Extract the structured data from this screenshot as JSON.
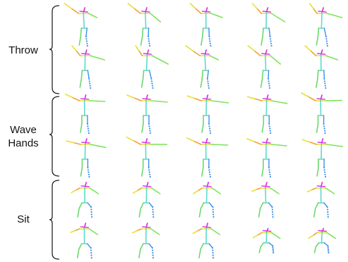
{
  "groups": [
    {
      "label": "Throw",
      "label_lines": [
        "Throw"
      ]
    },
    {
      "label": "Wave Hands",
      "label_lines": [
        "Wave",
        "Hands"
      ]
    },
    {
      "label": "Sit",
      "label_lines": [
        "Sit"
      ]
    }
  ],
  "colors": {
    "bracket": "#222222",
    "head": "#d63de0",
    "shoulder": "#e8e030",
    "left_arm": "#f0a040",
    "right_arm": "#7ee35a",
    "torso": "#5fd9c9",
    "left_leg": "#6bd96b",
    "right_leg": "#3f8fe8"
  },
  "poses": [
    [
      "stand-throw-a",
      "stand-throw-b",
      "stand-throw-c",
      "stand-throw-d",
      "stand-throw-e"
    ],
    [
      "stand-throw-f",
      "stand-throw-g",
      "stand-throw-h",
      "stand-throw-i",
      "stand-throw-j"
    ],
    [
      "wave-a",
      "wave-b",
      "wave-c",
      "wave-d",
      "wave-e"
    ],
    [
      "wave-f",
      "wave-g",
      "wave-h",
      "wave-i",
      "wave-j"
    ],
    [
      "sit-a",
      "sit-b",
      "sit-c",
      "sit-d",
      "sit-e"
    ],
    [
      "sit-f",
      "sit-g",
      "sit-h",
      "sit-i",
      "sit-j"
    ]
  ]
}
